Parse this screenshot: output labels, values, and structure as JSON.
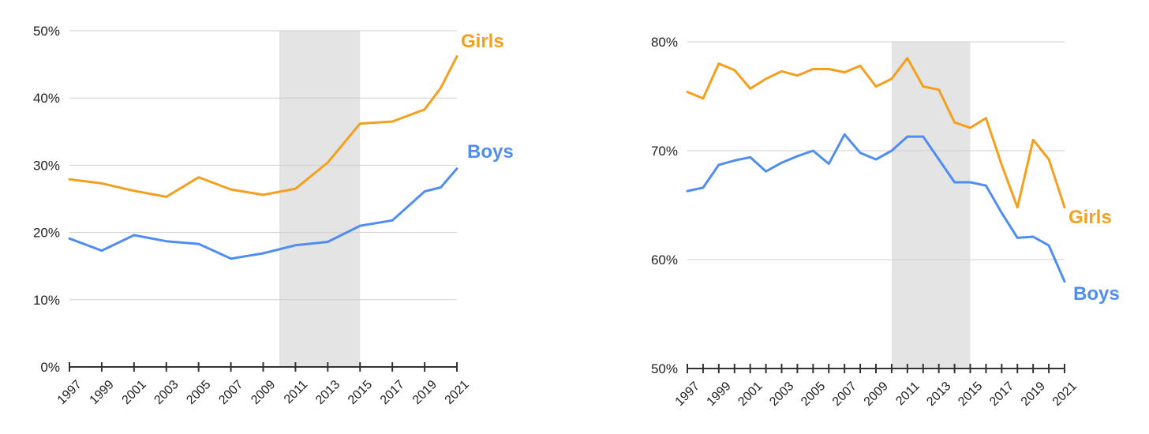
{
  "chart_data": [
    {
      "type": "line",
      "ylim": [
        0,
        50
      ],
      "y_ticks": [
        "0%",
        "10%",
        "20%",
        "30%",
        "40%",
        "50%"
      ],
      "y_tick_values": [
        0,
        10,
        20,
        30,
        40,
        50
      ],
      "x_range": [
        1997,
        2021
      ],
      "x_ticks": [
        "1997",
        "1999",
        "2001",
        "2003",
        "2005",
        "2007",
        "2009",
        "2011",
        "2013",
        "2015",
        "2017",
        "2019",
        "2021"
      ],
      "x_tick_values": [
        1997,
        1999,
        2001,
        2003,
        2005,
        2007,
        2009,
        2011,
        2013,
        2015,
        2017,
        2019,
        2021
      ],
      "tick_marks_every_year": false,
      "shaded_range": [
        2010,
        2015
      ],
      "grid": true,
      "series": [
        {
          "name": "Girls",
          "color": "#F59F1D",
          "x": [
            1997,
            1999,
            2001,
            2003,
            2005,
            2007,
            2009,
            2011,
            2013,
            2015,
            2017,
            2019,
            2020,
            2021
          ],
          "values": [
            27.9,
            27.3,
            26.2,
            25.3,
            28.2,
            26.4,
            25.6,
            26.5,
            30.4,
            36.2,
            36.5,
            38.3,
            41.5,
            46.2
          ]
        },
        {
          "name": "Boys",
          "color": "#4F8EF0",
          "x": [
            1997,
            1999,
            2001,
            2003,
            2005,
            2007,
            2009,
            2011,
            2013,
            2015,
            2017,
            2019,
            2020,
            2021
          ],
          "values": [
            19.1,
            17.3,
            19.6,
            18.7,
            18.3,
            16.1,
            16.9,
            18.1,
            18.6,
            21.0,
            21.8,
            26.1,
            26.7,
            29.5
          ]
        }
      ]
    },
    {
      "type": "line",
      "ylim": [
        50,
        80
      ],
      "y_ticks": [
        "50%",
        "60%",
        "70%",
        "80%"
      ],
      "y_tick_values": [
        50,
        60,
        70,
        80
      ],
      "x_range": [
        1997,
        2021
      ],
      "x_ticks": [
        "1997",
        "1999",
        "2001",
        "2003",
        "2005",
        "2007",
        "2009",
        "2011",
        "2013",
        "2015",
        "2017",
        "2019",
        "2021"
      ],
      "x_tick_values": [
        1997,
        1999,
        2001,
        2003,
        2005,
        2007,
        2009,
        2011,
        2013,
        2015,
        2017,
        2019,
        2021
      ],
      "tick_marks_every_year": true,
      "shaded_range": [
        2010,
        2015
      ],
      "grid": true,
      "series": [
        {
          "name": "Girls",
          "color": "#F59F1D",
          "x": [
            1997,
            1998,
            1999,
            2000,
            2001,
            2002,
            2003,
            2004,
            2005,
            2006,
            2007,
            2008,
            2009,
            2010,
            2011,
            2012,
            2013,
            2014,
            2015,
            2016,
            2017,
            2018,
            2019,
            2020,
            2021
          ],
          "values": [
            75.4,
            74.8,
            78.0,
            77.4,
            75.7,
            76.6,
            77.3,
            76.9,
            77.5,
            77.5,
            77.2,
            77.8,
            75.9,
            76.6,
            78.5,
            75.9,
            75.6,
            72.6,
            72.1,
            73.0,
            68.7,
            64.8,
            71.0,
            69.2,
            64.8
          ]
        },
        {
          "name": "Boys",
          "color": "#4F8EF0",
          "x": [
            1997,
            1998,
            1999,
            2000,
            2001,
            2002,
            2003,
            2004,
            2005,
            2006,
            2007,
            2008,
            2009,
            2010,
            2011,
            2012,
            2013,
            2014,
            2015,
            2016,
            2017,
            2018,
            2019,
            2020,
            2021
          ],
          "values": [
            66.3,
            66.6,
            68.7,
            69.1,
            69.4,
            68.1,
            68.9,
            69.5,
            70.0,
            68.8,
            71.5,
            69.8,
            69.2,
            70.0,
            71.3,
            71.3,
            69.2,
            67.1,
            67.1,
            66.8,
            64.3,
            62.0,
            62.1,
            61.3,
            58.0
          ]
        }
      ]
    }
  ]
}
